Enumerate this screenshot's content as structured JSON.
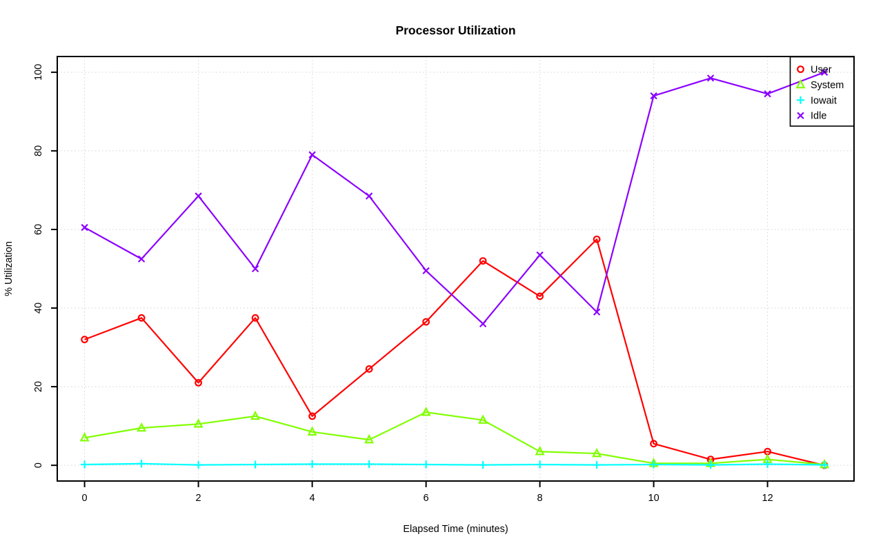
{
  "chart_data": {
    "type": "line",
    "title": "Processor Utilization",
    "xlabel": "Elapsed Time (minutes)",
    "ylabel": "% Utilization",
    "x": [
      0,
      1,
      2,
      3,
      4,
      5,
      6,
      7,
      8,
      9,
      10,
      11,
      12,
      13
    ],
    "series": [
      {
        "name": "User",
        "color": "#FF0000",
        "marker": "circle",
        "values": [
          32,
          37.5,
          21,
          37.5,
          12.5,
          24.5,
          36.5,
          52,
          43,
          57.5,
          5.5,
          1.5,
          3.5,
          0
        ]
      },
      {
        "name": "System",
        "color": "#80FF00",
        "marker": "triangle",
        "values": [
          7,
          9.5,
          10.5,
          12.5,
          8.5,
          6.5,
          13.5,
          11.5,
          3.5,
          3,
          0.5,
          0.5,
          1.5,
          0.2
        ]
      },
      {
        "name": "Iowait",
        "color": "#00FFFF",
        "marker": "plus",
        "values": [
          0.2,
          0.4,
          0.1,
          0.2,
          0.3,
          0.3,
          0.2,
          0.1,
          0.2,
          0.1,
          0.2,
          0.1,
          0.3,
          0.1
        ]
      },
      {
        "name": "Idle",
        "color": "#8B00FF",
        "marker": "x",
        "values": [
          60.5,
          52.5,
          68.5,
          50,
          79,
          68.5,
          49.5,
          36,
          53.5,
          39,
          94,
          98.5,
          94.5,
          100
        ]
      }
    ],
    "xticks": [
      0,
      2,
      4,
      6,
      8,
      10,
      12
    ],
    "yticks": [
      0,
      20,
      40,
      60,
      80,
      100
    ],
    "xlim": [
      -0.48,
      13.52
    ],
    "ylim": [
      -4,
      104
    ],
    "grid": true,
    "grid_color": "#D2D2D2",
    "axis_color": "#000000",
    "legend_position": "top-right",
    "legend_labels": [
      "User",
      "System",
      "Iowait",
      "Idle"
    ]
  }
}
